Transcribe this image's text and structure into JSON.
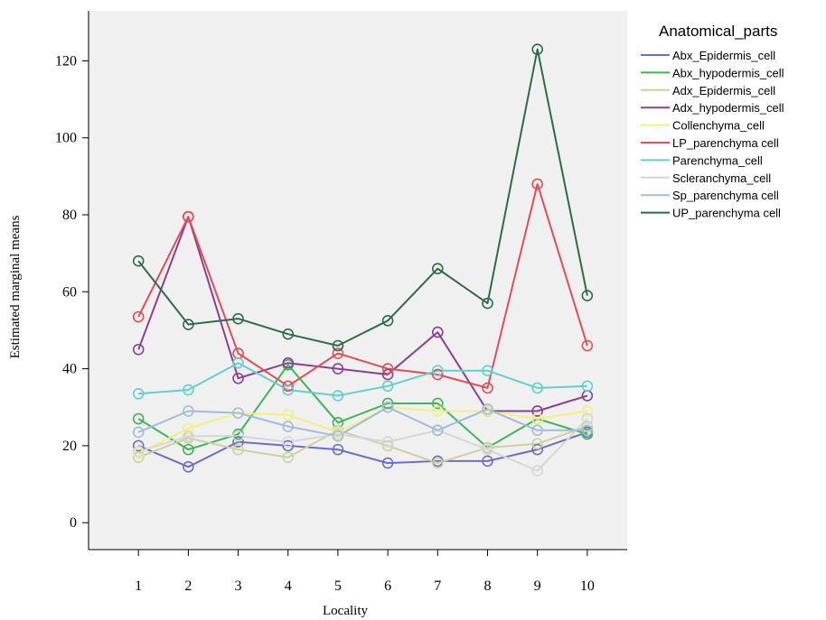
{
  "chart_data": {
    "type": "line",
    "xlabel": "Locality",
    "ylabel": "Estimated marginal means",
    "x": [
      1,
      2,
      3,
      4,
      5,
      6,
      7,
      8,
      9,
      10
    ],
    "x_tick_labels": [
      "1",
      "2",
      "3",
      "4",
      "5",
      "6",
      "7",
      "8",
      "9",
      "10"
    ],
    "y_ticks": [
      0,
      20,
      40,
      60,
      80,
      100,
      120
    ],
    "y_tick_labels": [
      "0",
      "20",
      "40",
      "60",
      "80",
      "100",
      "120"
    ],
    "ylim": [
      -7,
      133
    ],
    "xlim": [
      0.0,
      10.8
    ],
    "grid": false,
    "legend_title": "Anatomical_parts",
    "legend_position": "right",
    "markers": "open-circle",
    "background": "#f0f0f0",
    "series": [
      {
        "name": "Abx_Epidermis_cell",
        "color": "#6a6fc4",
        "values": [
          20,
          14.5,
          21,
          20,
          19,
          15.5,
          16,
          16,
          19,
          23.5
        ]
      },
      {
        "name": "Abx_hypodermis_cell",
        "color": "#3fb55a",
        "values": [
          27,
          19,
          23,
          41,
          26,
          31,
          31,
          19.5,
          27,
          23
        ]
      },
      {
        "name": "Adx_Epidermis_cell",
        "color": "#cdd0a0",
        "values": [
          17,
          22,
          19,
          17,
          24,
          20,
          15.5,
          19.5,
          20.5,
          25
        ]
      },
      {
        "name": "Adx_hypodermis_cell",
        "color": "#8a3f98",
        "values": [
          45,
          79.5,
          37.5,
          41.5,
          40,
          38.5,
          49.5,
          29,
          29,
          33
        ]
      },
      {
        "name": "Collenchyma_cell",
        "color": "#f2f080",
        "values": [
          18,
          24.5,
          28.5,
          28,
          23.5,
          30,
          29,
          29,
          27,
          29
        ]
      },
      {
        "name": "LP_parenchyma cell",
        "color": "#e34d55",
        "values": [
          53.5,
          79.5,
          44,
          35.5,
          44,
          40,
          38.5,
          35,
          88,
          46
        ]
      },
      {
        "name": "Parenchyma_cell",
        "color": "#62cfcf",
        "values": [
          33.5,
          34.5,
          41.5,
          34.5,
          33,
          35.5,
          39.5,
          39.5,
          35,
          35.5
        ]
      },
      {
        "name": "Scleranchyma_cell",
        "color": "#d6d6d6",
        "values": [
          18.5,
          22.5,
          22.5,
          21,
          23,
          21,
          24,
          19,
          13.5,
          27
        ]
      },
      {
        "name": "Sp_parenchyma cell",
        "color": "#a2bcd8",
        "values": [
          23.5,
          29,
          28.5,
          25,
          22.5,
          30,
          24,
          29.5,
          24,
          24
        ]
      },
      {
        "name": "UP_parenchyma cell",
        "color": "#2e6b48",
        "values": [
          68,
          51.5,
          53,
          49,
          46,
          52.5,
          66,
          57,
          123,
          59
        ]
      }
    ]
  }
}
